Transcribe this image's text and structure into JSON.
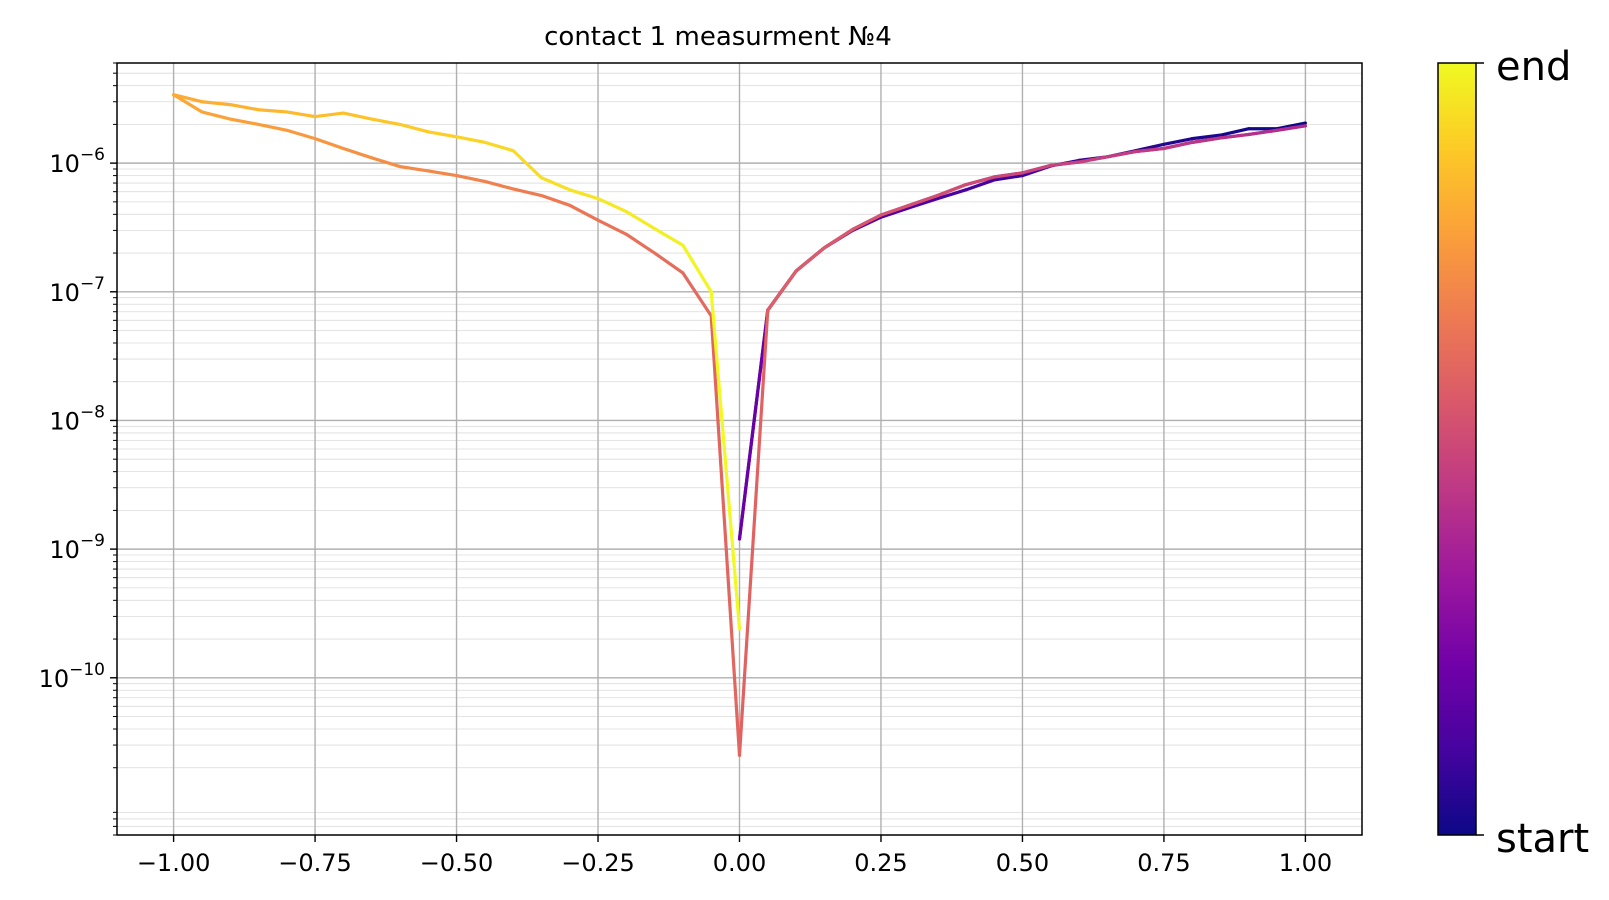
{
  "chart_data": {
    "type": "line",
    "title": "contact 1 measurment №4",
    "xlabel": "",
    "ylabel": "",
    "yscale": "log",
    "xlim": [
      -1.1,
      1.1
    ],
    "ylim": [
      6e-12,
      6e-06
    ],
    "grid": true,
    "x_ticks": [
      -1.0,
      -0.75,
      -0.5,
      -0.25,
      0.0,
      0.25,
      0.5,
      0.75,
      1.0
    ],
    "x_tick_labels": [
      "−1.00",
      "−0.75",
      "−0.50",
      "−0.25",
      "0.00",
      "0.25",
      "0.50",
      "0.75",
      "1.00"
    ],
    "y_ticks": [
      {
        "value": 1e-10,
        "base": "10",
        "exp": "−10"
      },
      {
        "value": 1e-09,
        "base": "10",
        "exp": "−9"
      },
      {
        "value": 1e-08,
        "base": "10",
        "exp": "−8"
      },
      {
        "value": 1e-07,
        "base": "10",
        "exp": "−7"
      },
      {
        "value": 1e-06,
        "base": "10",
        "exp": "−6"
      }
    ],
    "colorbar": {
      "colormap": "plasma",
      "colors": [
        "#0d0887",
        "#46039f",
        "#7201a8",
        "#9c179e",
        "#bd3786",
        "#d8576b",
        "#ed7953",
        "#fb9f3a",
        "#fdca26",
        "#f0f921"
      ],
      "label_end": "end",
      "label_start": "start"
    },
    "x": [
      1.0,
      0.95,
      0.9,
      0.85,
      0.8,
      0.75,
      0.7,
      0.65,
      0.6,
      0.55,
      0.5,
      0.45,
      0.4,
      0.35,
      0.3,
      0.25,
      0.2,
      0.15,
      0.1,
      0.05,
      0.0,
      0.05,
      0.1,
      0.15,
      0.2,
      0.25,
      0.3,
      0.35,
      0.4,
      0.45,
      0.5,
      0.55,
      0.6,
      0.65,
      0.7,
      0.75,
      0.8,
      0.85,
      0.9,
      0.95,
      1.0,
      0.95,
      0.9,
      0.85,
      0.8,
      0.75,
      0.7,
      0.65,
      0.6,
      0.55,
      0.5,
      0.45,
      0.4,
      0.35,
      0.3,
      0.25,
      0.2,
      0.15,
      0.1,
      0.05,
      0.0,
      -0.05,
      -0.1,
      -0.15,
      -0.2,
      -0.25,
      -0.3,
      -0.35,
      -0.4,
      -0.45,
      -0.5,
      -0.55,
      -0.6,
      -0.65,
      -0.7,
      -0.75,
      -0.8,
      -0.85,
      -0.9,
      -0.95,
      -1.0,
      -0.95,
      -0.9,
      -0.85,
      -0.8,
      -0.75,
      -0.7,
      -0.65,
      -0.6,
      -0.55,
      -0.5,
      -0.45,
      -0.4,
      -0.35,
      -0.3,
      -0.25,
      -0.2,
      -0.15,
      -0.1,
      -0.05,
      0.0
    ],
    "y": [
      2.05e-06,
      1.85e-06,
      1.85e-06,
      1.65e-06,
      1.55e-06,
      1.4e-06,
      1.25e-06,
      1.12e-06,
      1.05e-06,
      9.5e-07,
      8e-07,
      7.4e-07,
      6.2e-07,
      5.3e-07,
      4.5e-07,
      3.8e-07,
      3e-07,
      2.2e-07,
      1.45e-07,
      7.2e-08,
      1.2e-09,
      7.2e-08,
      1.45e-07,
      2.2e-07,
      3.05e-07,
      3.95e-07,
      4.7e-07,
      5.6e-07,
      6.8e-07,
      7.8e-07,
      8.4e-07,
      9.6e-07,
      1.02e-06,
      1.12e-06,
      1.23e-06,
      1.3e-06,
      1.45e-06,
      1.57e-06,
      1.67e-06,
      1.8e-06,
      1.95e-06,
      1.8e-06,
      1.67e-06,
      1.57e-06,
      1.45e-06,
      1.3e-06,
      1.23e-06,
      1.12e-06,
      1.02e-06,
      9.6e-07,
      8.4e-07,
      7.8e-07,
      6.8e-07,
      5.6e-07,
      4.7e-07,
      3.95e-07,
      3.05e-07,
      2.2e-07,
      1.45e-07,
      7.2e-08,
      2.5e-11,
      6.5e-08,
      1.4e-07,
      2e-07,
      2.8e-07,
      3.6e-07,
      4.7e-07,
      5.6e-07,
      6.3e-07,
      7.2e-07,
      8e-07,
      8.7e-07,
      9.4e-07,
      1.1e-06,
      1.3e-06,
      1.55e-06,
      1.8e-06,
      2e-06,
      2.2e-06,
      2.5e-06,
      3.4e-06,
      3e-06,
      2.85e-06,
      2.6e-06,
      2.5e-06,
      2.3e-06,
      2.45e-06,
      2.2e-06,
      2e-06,
      1.75e-06,
      1.6e-06,
      1.45e-06,
      1.25e-06,
      7.7e-07,
      6.2e-07,
      5.3e-07,
      4.2e-07,
      3.1e-07,
      2.3e-07,
      1e-07,
      2.4e-10
    ]
  }
}
